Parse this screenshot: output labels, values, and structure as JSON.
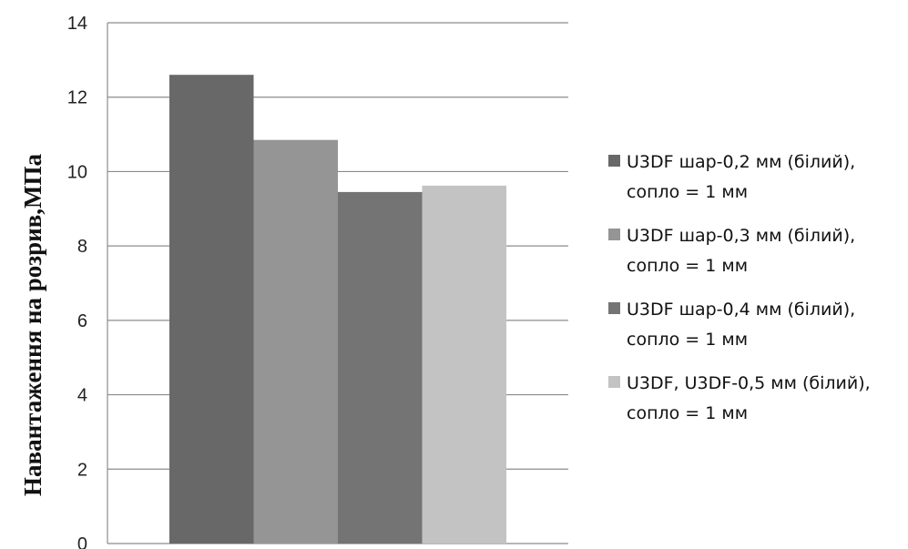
{
  "chart_data": {
    "type": "bar",
    "title": "",
    "xlabel": "",
    "ylabel": "Навантаження на розрив,МПа",
    "ylim": [
      0,
      14
    ],
    "yticks": [
      "0",
      "2",
      "4",
      "6",
      "8",
      "10",
      "12",
      "14"
    ],
    "grid": true,
    "legend_position": "right",
    "series": [
      {
        "name": "U3DF шар-0,2 мм (білий), сопло = 1 мм",
        "name_lines": [
          "U3DF шар-0,2 мм (білий),",
          "сопло = 1 мм"
        ],
        "values": [
          12.6
        ],
        "color": "#686868"
      },
      {
        "name": "U3DF шар-0,3 мм (білий), сопло = 1 мм",
        "name_lines": [
          "U3DF шар-0,3 мм (білий),",
          "сопло = 1 мм"
        ],
        "values": [
          10.85
        ],
        "color": "#959595"
      },
      {
        "name": "U3DF шар-0,4 мм (білий), сопло = 1 мм",
        "name_lines": [
          "U3DF шар-0,4 мм (білий),",
          "сопло = 1 мм"
        ],
        "values": [
          9.45
        ],
        "color": "#747474"
      },
      {
        "name": "U3DF, U3DF-0,5 мм (білий), сопло = 1 мм",
        "name_lines": [
          "U3DF, U3DF-0,5 мм (білий),",
          "сопло = 1 мм"
        ],
        "values": [
          9.62
        ],
        "color": "#c3c3c3"
      }
    ]
  }
}
